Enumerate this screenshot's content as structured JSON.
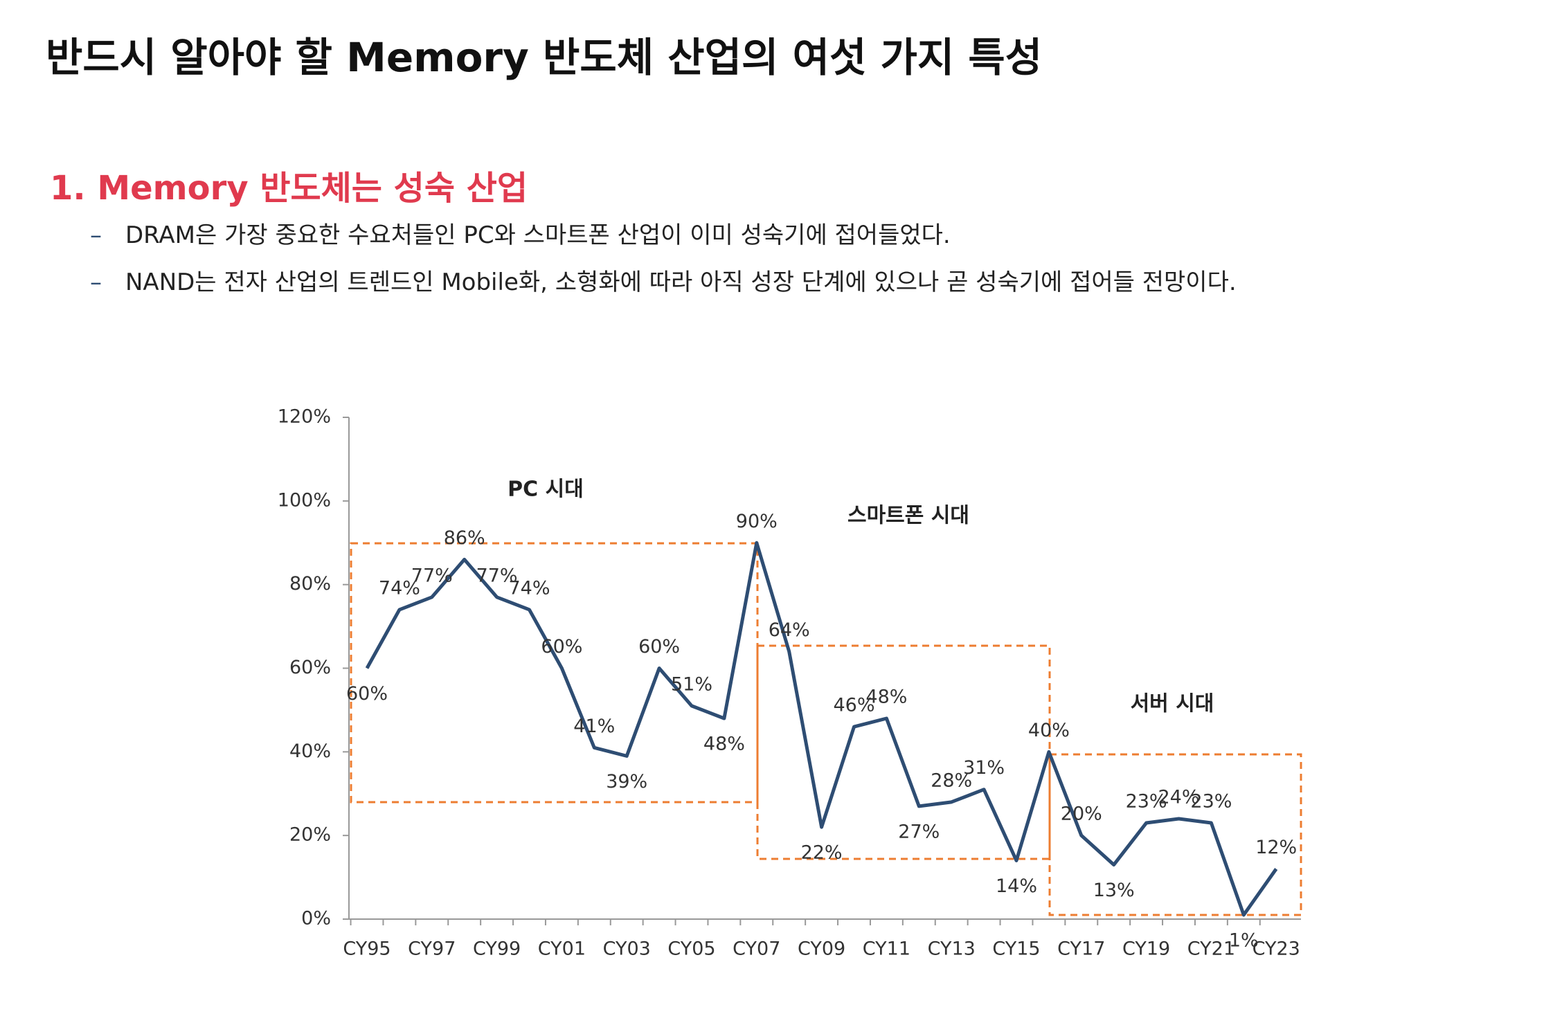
{
  "title": "반드시 알아야 할 Memory 반도체 산업의 여섯 가지 특성",
  "section": {
    "heading": "1. Memory 반도체는 성숙 산업",
    "bullets": [
      "DRAM은 가장 중요한 수요처들인 PC와 스마트폰 산업이 이미 성숙기에 접어들었다.",
      "NAND는 전자 산업의 트렌드인 Mobile화, 소형화에 따라 아직 성장 단계에 있으나 곧 성숙기에 접어들 전망이다."
    ]
  },
  "chart_data": {
    "type": "line",
    "categories": [
      "CY95",
      null,
      "CY97",
      null,
      "CY99",
      null,
      "CY01",
      null,
      "CY03",
      null,
      "CY05",
      null,
      "CY07",
      null,
      "CY09",
      null,
      "CY11",
      null,
      "CY13",
      null,
      "CY15",
      null,
      "CY17",
      null,
      "CY19",
      null,
      "CY21",
      null,
      "CY23"
    ],
    "values": [
      60,
      74,
      77,
      86,
      77,
      74,
      60,
      41,
      39,
      60,
      51,
      48,
      90,
      64,
      22,
      46,
      48,
      27,
      28,
      31,
      14,
      40,
      20,
      13,
      23,
      24,
      23,
      1,
      12
    ],
    "value_labels": [
      "60%",
      "74%",
      "77%",
      "86%",
      "77%",
      "74%",
      "60%",
      "41%",
      "39%",
      "60%",
      "51%",
      "48%",
      "90%",
      "64%",
      "22%",
      "46%",
      "48%",
      "27%",
      "28%",
      "31%",
      "14%",
      "40%",
      "20%",
      "13%",
      "23%",
      "24%",
      "23%",
      "1%",
      "12%"
    ],
    "color": "#2e4d73",
    "ylim": [
      0,
      120
    ],
    "yticks": [
      {
        "value": 0,
        "label": "0%"
      },
      {
        "value": 20,
        "label": "20%"
      },
      {
        "value": 40,
        "label": "40%"
      },
      {
        "value": 60,
        "label": "60%"
      },
      {
        "value": 80,
        "label": "80%"
      },
      {
        "value": 100,
        "label": "100%"
      },
      {
        "value": 120,
        "label": "120%"
      }
    ],
    "annotations": [
      "PC 시대",
      "스마트폰 시대",
      "서버 시대"
    ]
  }
}
